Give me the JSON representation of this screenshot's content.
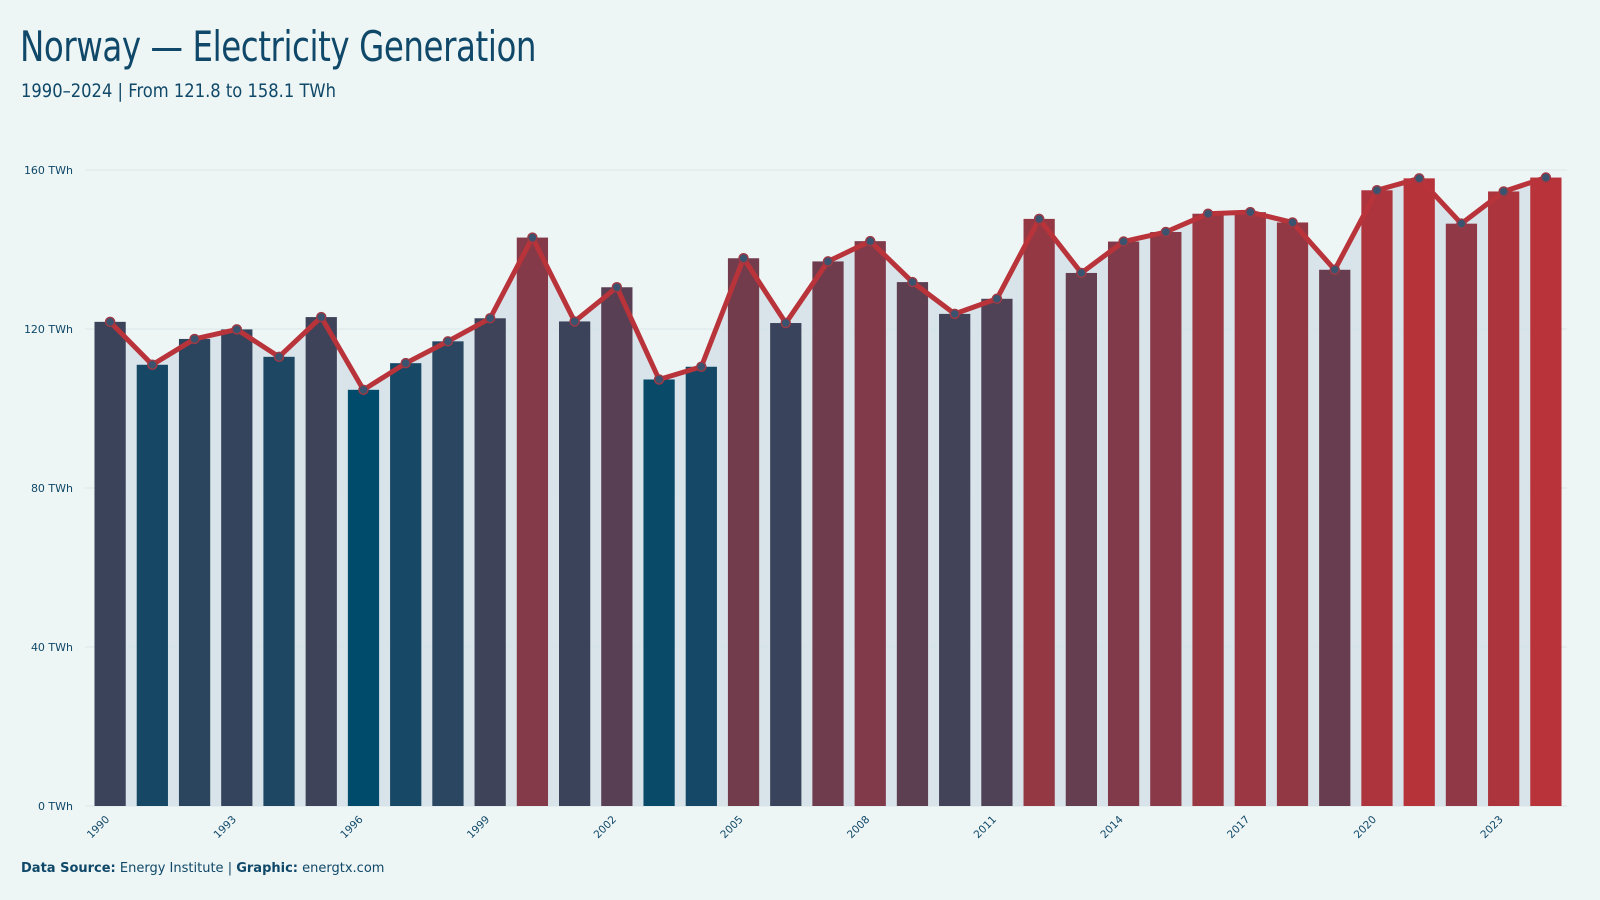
{
  "title": "Norway — Electricity Generation",
  "subtitle": "1990–2024 | From 121.8 to 158.1 TWh",
  "footer": {
    "source_label": "Data Source:",
    "source_value": "Energy Institute",
    "separator": "|",
    "graphic_label": "Graphic:",
    "graphic_value": "energtx.com"
  },
  "colors": {
    "low": "#004b6b",
    "high": "#b8333a",
    "line": "#b8333a",
    "point_fill": "#3a5470",
    "point_stroke": "#9c3a45",
    "area": "#d3e1e6",
    "grid": "#dce6e8",
    "axis_text": "#0f4868"
  },
  "chart_data": {
    "type": "bar",
    "unit": "TWh",
    "ylim": [
      0,
      160
    ],
    "yticks": [
      {
        "value": 0,
        "label": "0 TWh"
      },
      {
        "value": 40,
        "label": "40 TWh"
      },
      {
        "value": 80,
        "label": "80 TWh"
      },
      {
        "value": 120,
        "label": "120 TWh"
      },
      {
        "value": 160,
        "label": "160 TWh"
      }
    ],
    "xtick_labels": [
      "1990",
      "1993",
      "1996",
      "1999",
      "2002",
      "2005",
      "2008",
      "2011",
      "2014",
      "2017",
      "2020",
      "2023"
    ],
    "grid": true,
    "categories": [
      "1990",
      "1991",
      "1992",
      "1993",
      "1994",
      "1995",
      "1996",
      "1997",
      "1998",
      "1999",
      "2000",
      "2001",
      "2002",
      "2003",
      "2004",
      "2005",
      "2006",
      "2007",
      "2008",
      "2009",
      "2010",
      "2011",
      "2012",
      "2013",
      "2014",
      "2015",
      "2016",
      "2017",
      "2018",
      "2019",
      "2020",
      "2021",
      "2022",
      "2023",
      "2024"
    ],
    "values": [
      121.8,
      111.0,
      117.5,
      119.9,
      113.0,
      123.0,
      104.7,
      111.4,
      116.9,
      122.7,
      143.0,
      121.9,
      130.5,
      107.3,
      110.5,
      137.8,
      121.5,
      137.0,
      142.1,
      131.8,
      123.8,
      127.6,
      147.7,
      134.1,
      142.0,
      144.4,
      149.0,
      149.4,
      146.8,
      134.9,
      154.9,
      157.9,
      146.5,
      154.6,
      158.1
    ]
  }
}
